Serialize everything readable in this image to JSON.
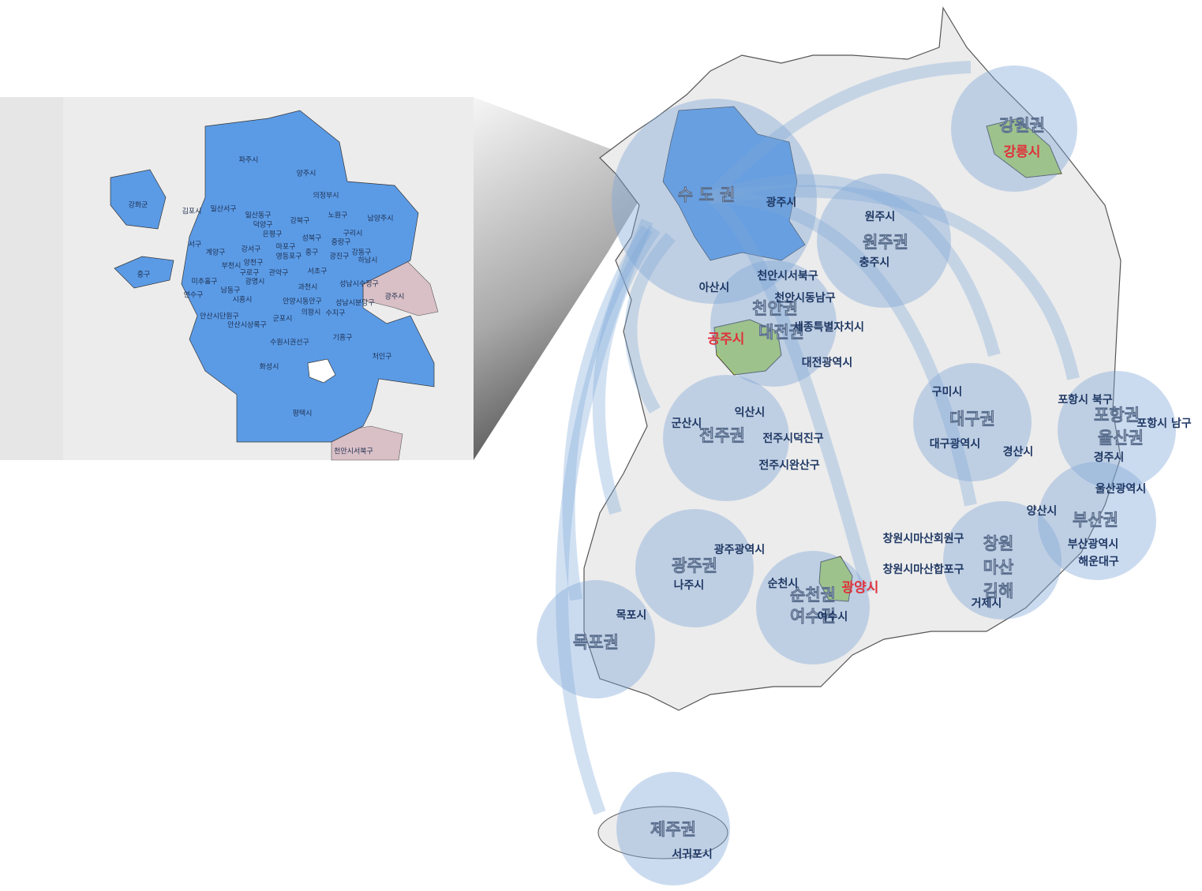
{
  "inset": {
    "labels": [
      "파주시",
      "양주시",
      "의정부시",
      "강화군",
      "김포시",
      "일산서구",
      "일산동구",
      "덕양구",
      "노원구",
      "남양주시",
      "강북구",
      "은평구",
      "성북구",
      "구리시",
      "중랑구",
      "강동구",
      "하남시",
      "광진구",
      "계양구",
      "서구",
      "부천시",
      "강서구",
      "마포구",
      "양천구",
      "구로구",
      "영등포구",
      "관악구",
      "서초구",
      "중구",
      "중구",
      "미추홀구",
      "연수구",
      "남동구",
      "시흥시",
      "광명시",
      "과천시",
      "성남시수정구",
      "성남시분당구",
      "안양시동안구",
      "의왕시",
      "수지구",
      "군포시",
      "안산시상록구",
      "안산시단원구",
      "수원시권선구",
      "기흥구",
      "처인구",
      "화성시",
      "평택시",
      "광주시",
      "천안시서북구"
    ]
  },
  "map": {
    "region_labels": [
      "강원권",
      "수 도 권",
      "원주권",
      "천안권",
      "대전권",
      "전주권",
      "대구권",
      "포항권",
      "울산권",
      "부산권",
      "창원",
      "마산",
      "김해",
      "광주권",
      "순천권",
      "여수권",
      "목포권",
      "제주권"
    ],
    "city_labels": [
      "광주시",
      "원주시",
      "충주시",
      "아산시",
      "천안시서북구",
      "천안시동남구",
      "세종특별자치시",
      "대전광역시",
      "익산시",
      "군산시",
      "전주시덕진구",
      "전주시완산구",
      "구미시",
      "대구광역시",
      "경산시",
      "포항시 북구",
      "포항시 남구",
      "경주시",
      "울산광역시",
      "양산시",
      "부산광역시",
      "해운대구",
      "창원시마산회원구",
      "창원시마산합포구",
      "거제시",
      "광주광역시",
      "나주시",
      "순천시",
      "여수시",
      "목포시",
      "서귀포시"
    ],
    "highlight_labels": [
      "강릉시",
      "공주시",
      "광양시"
    ]
  }
}
